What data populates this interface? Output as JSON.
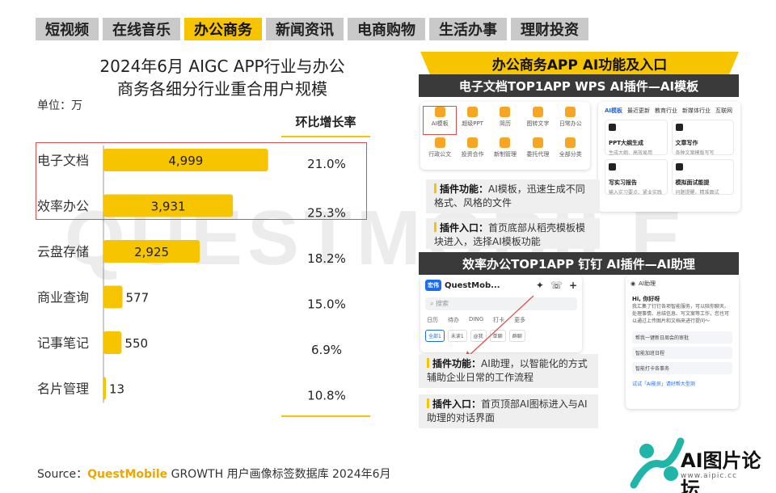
{
  "tabs": [
    {
      "label": "短视频"
    },
    {
      "label": "在线音乐"
    },
    {
      "label": "办公商务",
      "active": true
    },
    {
      "label": "新闻资讯"
    },
    {
      "label": "电商购物"
    },
    {
      "label": "生活办事"
    },
    {
      "label": "理财投资"
    }
  ],
  "watermark": "QUESTMOBILE",
  "chart_data": {
    "type": "bar",
    "orientation": "horizontal",
    "title_line1": "2024年6月 AIGC APP行业与办公",
    "title_line2": "商务各细分行业重合用户规模",
    "unit": "单位：万",
    "categories": [
      "电子文档",
      "效率办公",
      "云盘存储",
      "商业查询",
      "记事笔记",
      "名片管理"
    ],
    "values": [
      4999,
      3931,
      2925,
      577,
      550,
      13
    ],
    "value_labels": [
      "4,999",
      "3,931",
      "2,925",
      "577",
      "550",
      "13"
    ],
    "growth_header": "环比增长率",
    "growth": [
      "21.0%",
      "25.3%",
      "18.2%",
      "15.0%",
      "6.9%",
      "10.8%"
    ],
    "xlim": [
      0,
      5400
    ],
    "highlighted": [
      "电子文档",
      "效率办公"
    ],
    "bar_color": "#f7c400"
  },
  "right_panel": {
    "title": "办公商务APP AI功能及入口",
    "section1": {
      "header": "电子文档TOP1APP WPS AI插件—AI模板",
      "grid": [
        "AI模板",
        "超级PPT",
        "简历",
        "图转文字",
        "日常办公",
        "行政公文",
        "投资合作",
        "新制管理",
        "委托代理",
        "全部分类"
      ],
      "tabs": [
        "AI模板",
        "最近更新",
        "教育行业",
        "新媒体行业",
        "互联网"
      ],
      "tiles": [
        {
          "title": "PPT大纲生成",
          "desc": "生成大纲、高效易用"
        },
        {
          "title": "文章写作",
          "desc": "各种文案模版写写"
        },
        {
          "title": "写实习报告",
          "desc": "输入实习要点、紧业实践"
        },
        {
          "title": "模拟面试能提",
          "desc": "问题提醒、精准面试"
        }
      ],
      "feature_label": "插件功能：",
      "feature_text": "AI模板，迅速生成不同格式、风格的文件",
      "entry_label": "插件入口：",
      "entry_text": "首页底部从稻壳模板模块进入，选择AI模板功能"
    },
    "section2": {
      "header": "效率办公TOP1APP 钉钉 AI插件—AI助理",
      "app_name": "QuestMob...",
      "badge": "宏伟",
      "search": "搜索",
      "nav": [
        "日历",
        "待办",
        "DING",
        "打卡",
        "更多"
      ],
      "chips": [
        "全部1",
        "未读1",
        "@我",
        "单聊",
        "群聊"
      ],
      "assistant_title": "AI助理",
      "greeting": "Hi, 你好呀",
      "assistant_body": "我汇集了钉钉各项智能服务，可以陪你聊天、处理事情、总结信息、写文案等工作，您也可以通过上传图片和文档来进行提问～",
      "assistant_items": [
        "帮我一键新日周会的审批",
        "智能加班日程",
        "智能打卡各事务"
      ],
      "assistant_footer": "试试「AI能员」请好帮大型测",
      "feature_label": "插件功能：",
      "feature_text": "AI助理，以智能化的方式辅助企业日常的工作流程",
      "entry_label": "插件入口：",
      "entry_text": "首页顶部AI图标进入与AI助理的对话界面"
    }
  },
  "source": {
    "prefix": "Source：",
    "brand": "QuestMobile",
    "suffix": " GROWTH 用户画像标签数据库 2024年6月"
  },
  "corner_logo": {
    "text": "AI图片论坛",
    "url": "www.aipic.cc"
  }
}
